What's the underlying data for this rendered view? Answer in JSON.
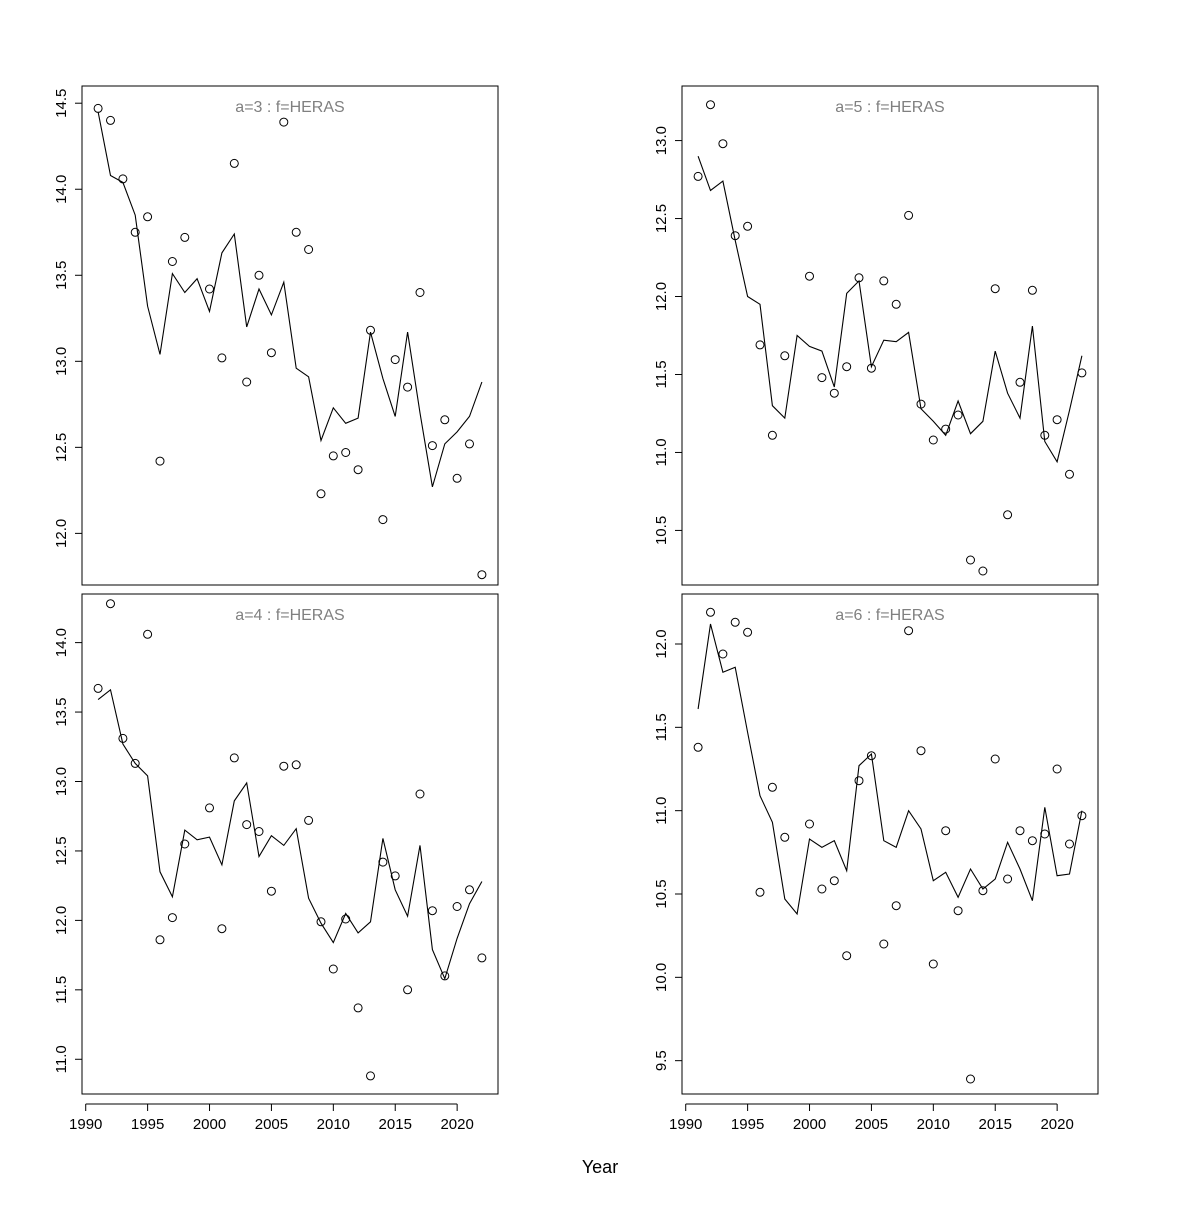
{
  "figure": {
    "xlabel": "Year",
    "x_ticks": [
      1990,
      1995,
      2000,
      2005,
      2010,
      2015,
      2020
    ],
    "xlim": [
      1989.7,
      2023.3
    ],
    "colors": {
      "axis": "#000000",
      "panel_title": "#808080",
      "line": "#000000",
      "points": "#000000"
    }
  },
  "chart_data": [
    {
      "type": "scatter",
      "title": "a=3  :  f=HERAS",
      "ylim": [
        11.7,
        14.6
      ],
      "y_ticks": [
        "12.0",
        "12.5",
        "13.0",
        "13.5",
        "14.0",
        "14.5"
      ],
      "x": [
        1991,
        1992,
        1993,
        1994,
        1995,
        1996,
        1997,
        1998,
        1999,
        2000,
        2001,
        2002,
        2003,
        2004,
        2005,
        2006,
        2007,
        2008,
        2009,
        2010,
        2011,
        2012,
        2013,
        2014,
        2015,
        2016,
        2017,
        2018,
        2019,
        2020,
        2021,
        2022
      ],
      "series": [
        {
          "kind": "points",
          "values": [
            14.47,
            14.4,
            14.06,
            13.75,
            13.84,
            12.42,
            13.58,
            13.72,
            null,
            13.42,
            13.02,
            14.15,
            12.88,
            13.5,
            13.05,
            14.39,
            13.75,
            13.65,
            12.23,
            12.45,
            12.47,
            12.37,
            13.18,
            12.08,
            13.01,
            12.85,
            13.4,
            12.51,
            12.66,
            12.32,
            12.52,
            11.76
          ]
        },
        {
          "kind": "line",
          "values": [
            14.45,
            14.08,
            14.04,
            13.85,
            13.32,
            13.04,
            13.51,
            13.4,
            13.48,
            13.29,
            13.63,
            13.74,
            13.2,
            13.42,
            13.27,
            13.46,
            12.96,
            12.91,
            12.54,
            12.73,
            12.64,
            12.67,
            13.17,
            12.9,
            12.68,
            13.17,
            12.7,
            12.27,
            12.52,
            12.59,
            12.68,
            12.88
          ]
        }
      ]
    },
    {
      "type": "scatter",
      "title": "a=5  :  f=HERAS",
      "ylim": [
        10.15,
        13.35
      ],
      "y_ticks": [
        "10.5",
        "11.0",
        "11.5",
        "12.0",
        "12.5",
        "13.0"
      ],
      "x": [
        1991,
        1992,
        1993,
        1994,
        1995,
        1996,
        1997,
        1998,
        1999,
        2000,
        2001,
        2002,
        2003,
        2004,
        2005,
        2006,
        2007,
        2008,
        2009,
        2010,
        2011,
        2012,
        2013,
        2014,
        2015,
        2016,
        2017,
        2018,
        2019,
        2020,
        2021,
        2022
      ],
      "series": [
        {
          "kind": "points",
          "values": [
            12.77,
            13.23,
            12.98,
            12.39,
            12.45,
            11.69,
            11.11,
            11.62,
            null,
            12.13,
            11.48,
            11.38,
            11.55,
            12.12,
            11.54,
            12.1,
            11.95,
            12.52,
            11.31,
            11.08,
            11.15,
            11.24,
            10.31,
            10.24,
            12.05,
            10.6,
            11.45,
            12.04,
            11.11,
            11.21,
            10.86,
            11.51
          ]
        },
        {
          "kind": "line",
          "values": [
            12.9,
            12.68,
            12.74,
            12.36,
            12.0,
            11.95,
            11.3,
            11.22,
            11.75,
            11.68,
            11.65,
            11.42,
            12.02,
            12.1,
            11.55,
            11.72,
            11.71,
            11.77,
            11.28,
            11.2,
            11.11,
            11.33,
            11.12,
            11.2,
            11.65,
            11.38,
            11.22,
            11.81,
            11.07,
            10.94,
            11.27,
            11.62
          ]
        }
      ]
    },
    {
      "type": "scatter",
      "title": "a=4  :  f=HERAS",
      "ylim": [
        10.75,
        14.35
      ],
      "y_ticks": [
        "11.0",
        "11.5",
        "12.0",
        "12.5",
        "13.0",
        "13.5",
        "14.0"
      ],
      "x": [
        1991,
        1992,
        1993,
        1994,
        1995,
        1996,
        1997,
        1998,
        1999,
        2000,
        2001,
        2002,
        2003,
        2004,
        2005,
        2006,
        2007,
        2008,
        2009,
        2010,
        2011,
        2012,
        2013,
        2014,
        2015,
        2016,
        2017,
        2018,
        2019,
        2020,
        2021,
        2022
      ],
      "series": [
        {
          "kind": "points",
          "values": [
            13.67,
            14.28,
            13.31,
            13.13,
            14.06,
            11.86,
            12.02,
            12.55,
            null,
            12.81,
            11.94,
            13.17,
            12.69,
            12.64,
            12.21,
            13.11,
            13.12,
            12.72,
            11.99,
            11.65,
            12.01,
            11.37,
            10.88,
            12.42,
            12.32,
            11.5,
            12.91,
            12.07,
            11.6,
            12.1,
            12.22,
            11.73
          ]
        },
        {
          "kind": "line",
          "values": [
            13.59,
            13.66,
            13.27,
            13.13,
            13.04,
            12.35,
            12.17,
            12.65,
            12.58,
            12.6,
            12.4,
            12.86,
            12.99,
            12.46,
            12.61,
            12.54,
            12.66,
            12.16,
            11.98,
            11.84,
            12.05,
            11.91,
            11.99,
            12.59,
            12.22,
            12.03,
            12.54,
            11.79,
            11.58,
            11.87,
            12.12,
            12.28
          ]
        }
      ]
    },
    {
      "type": "scatter",
      "title": "a=6  :  f=HERAS",
      "ylim": [
        9.3,
        12.3
      ],
      "y_ticks": [
        "9.5",
        "10.0",
        "10.5",
        "11.0",
        "11.5",
        "12.0"
      ],
      "x": [
        1991,
        1992,
        1993,
        1994,
        1995,
        1996,
        1997,
        1998,
        1999,
        2000,
        2001,
        2002,
        2003,
        2004,
        2005,
        2006,
        2007,
        2008,
        2009,
        2010,
        2011,
        2012,
        2013,
        2014,
        2015,
        2016,
        2017,
        2018,
        2019,
        2020,
        2021,
        2022
      ],
      "series": [
        {
          "kind": "points",
          "values": [
            11.38,
            12.19,
            11.94,
            12.13,
            12.07,
            10.51,
            11.14,
            10.84,
            null,
            10.92,
            10.53,
            10.58,
            10.13,
            11.18,
            11.33,
            10.2,
            10.43,
            12.08,
            11.36,
            10.08,
            10.88,
            10.4,
            9.39,
            10.52,
            11.31,
            10.59,
            10.88,
            10.82,
            10.86,
            11.25,
            10.8,
            10.97
          ]
        },
        {
          "kind": "line",
          "values": [
            11.61,
            12.12,
            11.83,
            11.86,
            11.47,
            11.09,
            10.93,
            10.47,
            10.38,
            10.83,
            10.78,
            10.82,
            10.64,
            11.27,
            11.34,
            10.82,
            10.78,
            11.0,
            10.89,
            10.58,
            10.63,
            10.48,
            10.65,
            10.53,
            10.59,
            10.81,
            10.65,
            10.46,
            11.02,
            10.61,
            10.62,
            11.0
          ]
        }
      ]
    }
  ]
}
